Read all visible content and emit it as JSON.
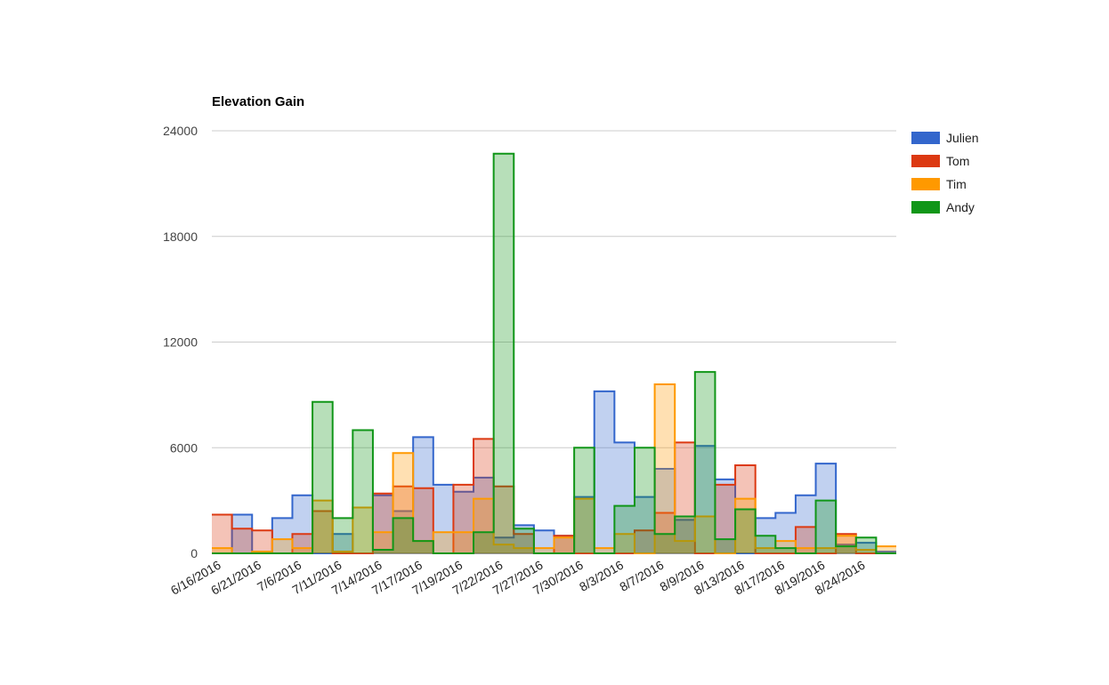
{
  "chart_data": {
    "type": "area",
    "title": "Elevation Gain",
    "xlabel": "",
    "ylabel": "",
    "ylim": [
      0,
      24000
    ],
    "yticks": [
      "0",
      "6000",
      "12000",
      "18000",
      "24000"
    ],
    "categories": [
      "6/16/2016",
      "6/19/2016",
      "6/21/2016",
      "6/24/2016",
      "7/6/2016",
      "7/8/2016",
      "7/11/2016",
      "7/12/2016",
      "7/14/2016",
      "7/15/2016",
      "7/17/2016",
      "7/18/2016",
      "7/19/2016",
      "7/20/2016",
      "7/22/2016",
      "7/25/2016",
      "7/27/2016",
      "7/28/2016",
      "7/30/2016",
      "8/1/2016",
      "8/3/2016",
      "8/5/2016",
      "8/7/2016",
      "8/8/2016",
      "8/9/2016",
      "8/11/2016",
      "8/13/2016",
      "8/15/2016",
      "8/17/2016",
      "8/18/2016",
      "8/19/2016",
      "8/22/2016",
      "8/24/2016",
      "8/25/2016"
    ],
    "xtick_labels": [
      "6/16/2016",
      "6/21/2016",
      "7/6/2016",
      "7/11/2016",
      "7/14/2016",
      "7/17/2016",
      "7/19/2016",
      "7/22/2016",
      "7/27/2016",
      "7/30/2016",
      "8/3/2016",
      "8/7/2016",
      "8/9/2016",
      "8/13/2016",
      "8/17/2016",
      "8/19/2016",
      "8/24/2016"
    ],
    "series": [
      {
        "name": "Julien",
        "color": "#3366cc",
        "values": [
          0,
          2200,
          0,
          2000,
          3300,
          0,
          1100,
          0,
          3300,
          2400,
          6600,
          3900,
          3500,
          4300,
          900,
          1600,
          1300,
          1000,
          3200,
          9200,
          6300,
          3200,
          4800,
          1900,
          6100,
          4200,
          0,
          2000,
          2300,
          3300,
          5100,
          500,
          600,
          100
        ]
      },
      {
        "name": "Tom",
        "color": "#dc3912",
        "values": [
          2200,
          1400,
          1300,
          0,
          1100,
          2400,
          0,
          0,
          3400,
          3800,
          3700,
          0,
          3900,
          6500,
          3800,
          1100,
          0,
          1000,
          0,
          0,
          0,
          1300,
          2300,
          6300,
          0,
          3900,
          5000,
          0,
          0,
          1500,
          0,
          1100,
          0,
          0
        ]
      },
      {
        "name": "Tim",
        "color": "#ff9900",
        "values": [
          300,
          0,
          100,
          800,
          300,
          3000,
          100,
          2600,
          1200,
          5700,
          700,
          1200,
          1200,
          3100,
          500,
          300,
          300,
          900,
          3100,
          300,
          1100,
          0,
          9600,
          700,
          2100,
          0,
          3100,
          300,
          700,
          300,
          300,
          1000,
          200,
          400
        ]
      },
      {
        "name": "Andy",
        "color": "#109618",
        "values": [
          0,
          0,
          0,
          0,
          0,
          8600,
          2000,
          7000,
          200,
          2000,
          700,
          0,
          0,
          1200,
          22700,
          1400,
          0,
          0,
          6000,
          0,
          2700,
          6000,
          1100,
          2100,
          10300,
          800,
          2500,
          1000,
          300,
          0,
          3000,
          400,
          900,
          0
        ]
      }
    ],
    "legend_position": "right",
    "grid": true
  }
}
